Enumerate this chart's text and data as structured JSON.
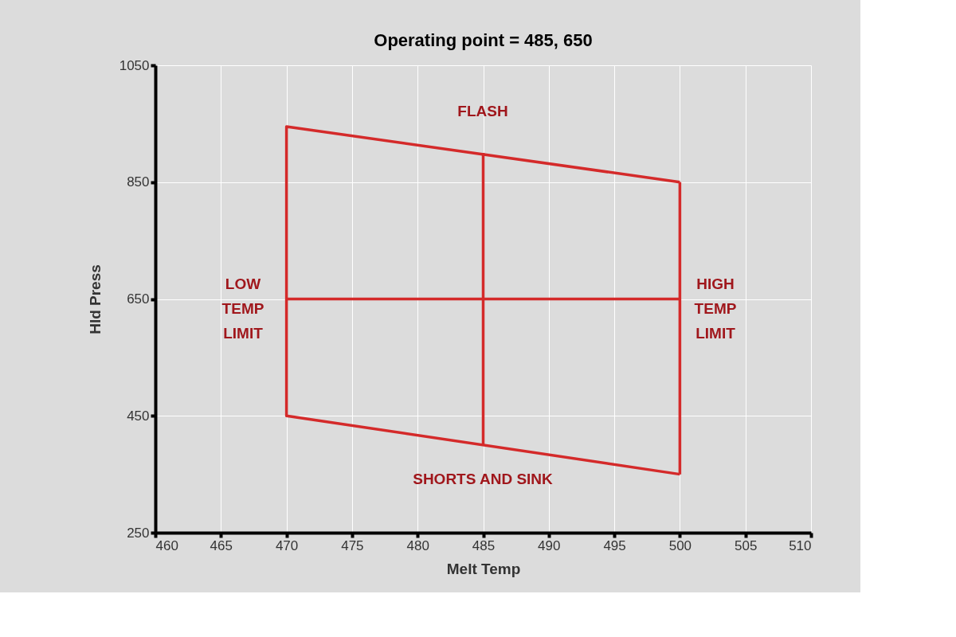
{
  "chart_data": {
    "type": "line",
    "title": "Operating point =  485,  650",
    "xlabel": "Melt Temp",
    "ylabel": "Hld Press",
    "xlim": [
      460,
      510
    ],
    "xticks": [
      460,
      465,
      470,
      475,
      480,
      485,
      490,
      495,
      500,
      505,
      510
    ],
    "ylim": [
      250,
      1050
    ],
    "yticks": [
      250,
      450,
      650,
      850,
      1050
    ],
    "grid": true,
    "legend": false,
    "marker": "none",
    "line_style": "solid",
    "series": [
      {
        "color": "#d42a2a",
        "x": [
          500,
          470,
          470,
          500
        ],
        "values": [
          350,
          450,
          945,
          850
        ]
      },
      {
        "color": "#d42a2a",
        "x": [
          500,
          500
        ],
        "values": [
          850,
          350
        ]
      },
      {
        "color": "#d42a2a",
        "x": [
          485,
          485
        ],
        "values": [
          400,
          900
        ]
      },
      {
        "color": "#d42a2a",
        "x": [
          470,
          500
        ],
        "values": [
          650,
          650
        ]
      }
    ],
    "annotations": [
      "FLASH",
      "SHORTS AND SINK",
      "LOW\nTEMP\nLIMIT",
      "HIGH\nTEMP\nLIMIT"
    ]
  }
}
